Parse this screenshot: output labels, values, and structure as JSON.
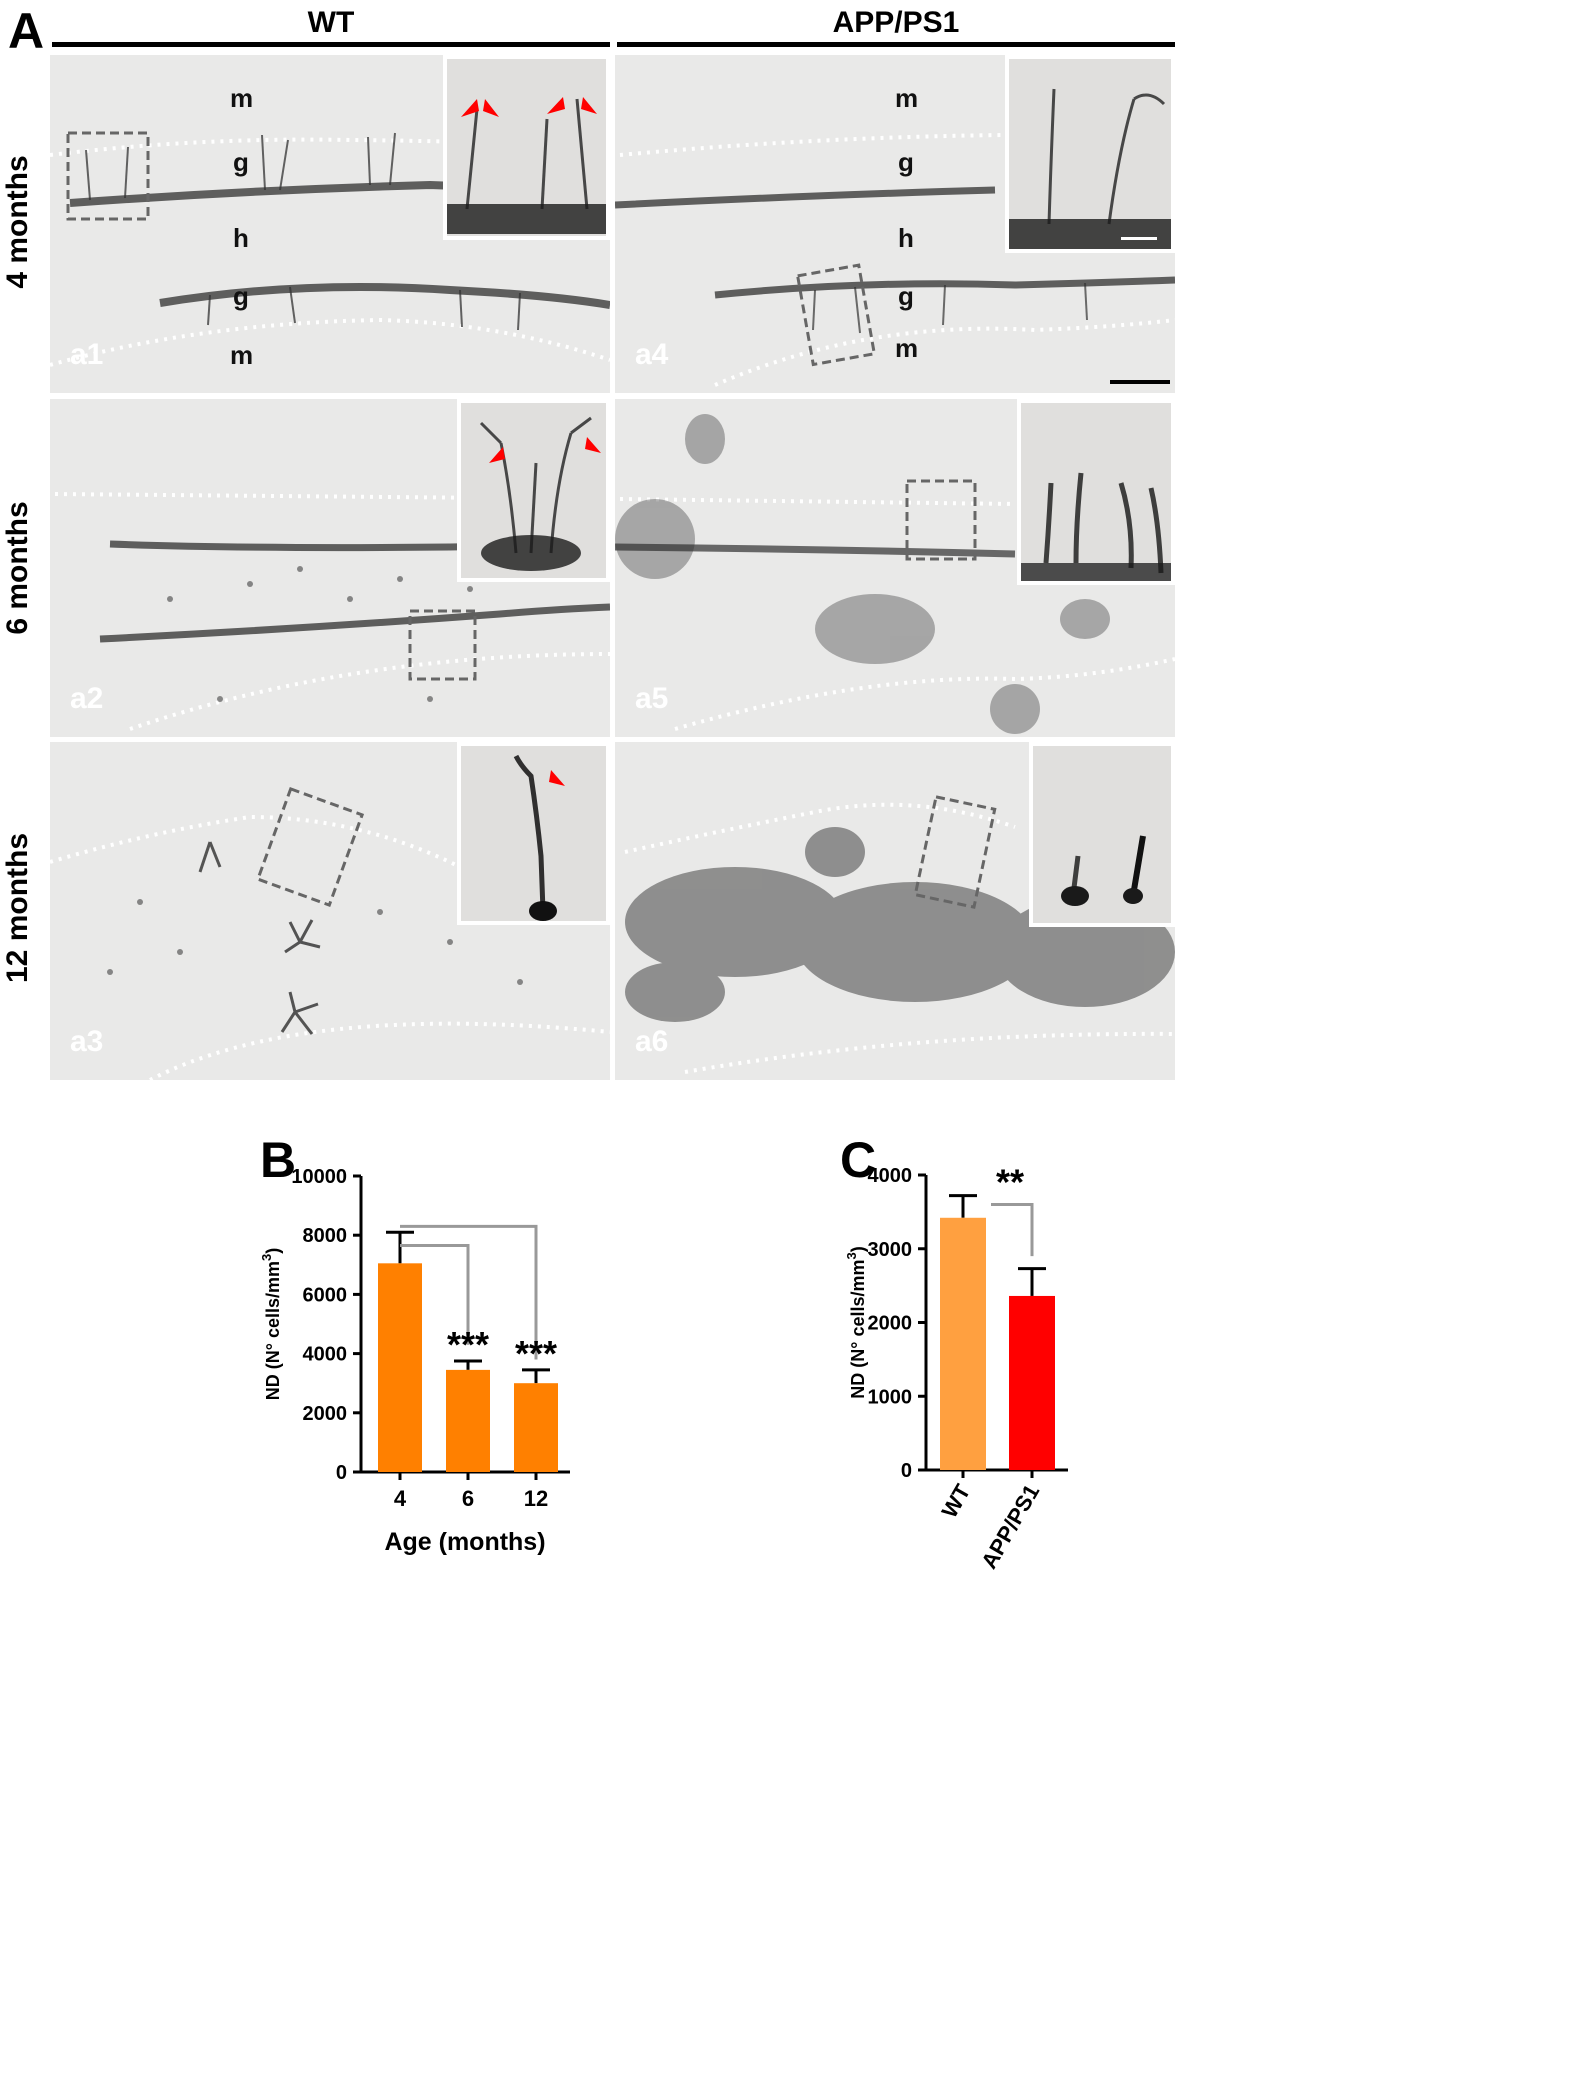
{
  "panel_a": {
    "letter": "A",
    "columns": [
      "WT",
      "APP/PS1"
    ],
    "rows": [
      "4 months",
      "6 months",
      "12 months"
    ],
    "panel_ids": [
      "a1",
      "a2",
      "a3",
      "a4",
      "a5",
      "a6"
    ],
    "zones": {
      "molecular": "m",
      "granular": "g",
      "hilus": "h"
    }
  },
  "panel_b": {
    "letter": "B"
  },
  "panel_c": {
    "letter": "C"
  },
  "chart_data": [
    {
      "type": "bar",
      "categories": [
        "4",
        "6",
        "12"
      ],
      "values": [
        7050,
        3450,
        3000
      ],
      "errors": [
        1050,
        300,
        450
      ],
      "bar_color": "#ff8000",
      "xlabel": "Age (months)",
      "ylabel": "ND (N° cells/mm³)",
      "ylim": [
        0,
        10000
      ],
      "yticks": [
        "0",
        "2000",
        "4000",
        "6000",
        "8000",
        "10000"
      ],
      "significance": [
        "",
        "***",
        "***"
      ],
      "comparisons": [
        [
          "4",
          "6"
        ],
        [
          "4",
          "12"
        ]
      ]
    },
    {
      "type": "bar",
      "categories": [
        "WT",
        "APP/PS1"
      ],
      "values": [
        3420,
        2360
      ],
      "errors": [
        300,
        370
      ],
      "bar_colors": [
        "#ffa040",
        "#ff0000"
      ],
      "ylabel": "ND (N° cells/mm³)",
      "ylim": [
        0,
        4000
      ],
      "yticks": [
        "0",
        "1000",
        "2000",
        "3000",
        "4000"
      ],
      "significance": "**",
      "comparisons": [
        [
          "WT",
          "APP/PS1"
        ]
      ]
    }
  ]
}
